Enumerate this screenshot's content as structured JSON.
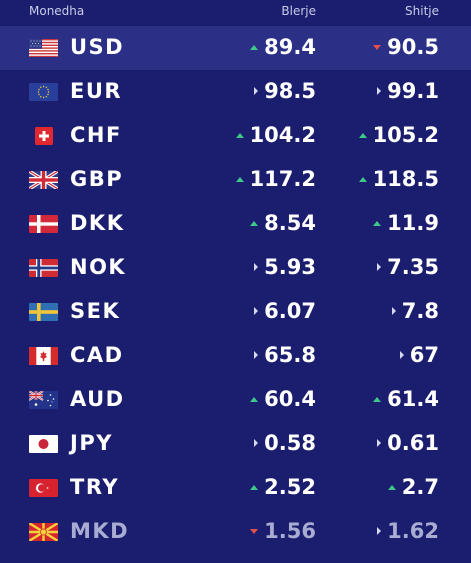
{
  "header": {
    "currency": "Monedha",
    "buy": "Blerje",
    "sell": "Shitje"
  },
  "colors": {
    "background": "#1b1e6e",
    "highlight_row": "#2c2f86",
    "up": "#3ec98a",
    "down": "#e24f4f",
    "flat": "#d6d8ee"
  },
  "rates": [
    {
      "code": "USD",
      "flag": "us-flag-icon",
      "buy": "89.4",
      "buy_trend": "up",
      "sell": "90.5",
      "sell_trend": "down"
    },
    {
      "code": "EUR",
      "flag": "eu-flag-icon",
      "buy": "98.5",
      "buy_trend": "flat",
      "sell": "99.1",
      "sell_trend": "flat"
    },
    {
      "code": "CHF",
      "flag": "ch-flag-icon",
      "buy": "104.2",
      "buy_trend": "up",
      "sell": "105.2",
      "sell_trend": "up"
    },
    {
      "code": "GBP",
      "flag": "gb-flag-icon",
      "buy": "117.2",
      "buy_trend": "up",
      "sell": "118.5",
      "sell_trend": "up"
    },
    {
      "code": "DKK",
      "flag": "dk-flag-icon",
      "buy": "8.54",
      "buy_trend": "up",
      "sell": "11.9",
      "sell_trend": "up"
    },
    {
      "code": "NOK",
      "flag": "no-flag-icon",
      "buy": "5.93",
      "buy_trend": "flat",
      "sell": "7.35",
      "sell_trend": "flat"
    },
    {
      "code": "SEK",
      "flag": "se-flag-icon",
      "buy": "6.07",
      "buy_trend": "flat",
      "sell": "7.8",
      "sell_trend": "flat"
    },
    {
      "code": "CAD",
      "flag": "ca-flag-icon",
      "buy": "65.8",
      "buy_trend": "flat",
      "sell": "67",
      "sell_trend": "flat"
    },
    {
      "code": "AUD",
      "flag": "au-flag-icon",
      "buy": "60.4",
      "buy_trend": "up",
      "sell": "61.4",
      "sell_trend": "up"
    },
    {
      "code": "JPY",
      "flag": "jp-flag-icon",
      "buy": "0.58",
      "buy_trend": "flat",
      "sell": "0.61",
      "sell_trend": "flat"
    },
    {
      "code": "TRY",
      "flag": "tr-flag-icon",
      "buy": "2.52",
      "buy_trend": "up",
      "sell": "2.7",
      "sell_trend": "up"
    },
    {
      "code": "MKD",
      "flag": "mk-flag-icon",
      "buy": "1.56",
      "buy_trend": "down",
      "sell": "1.62",
      "sell_trend": "flat"
    }
  ]
}
